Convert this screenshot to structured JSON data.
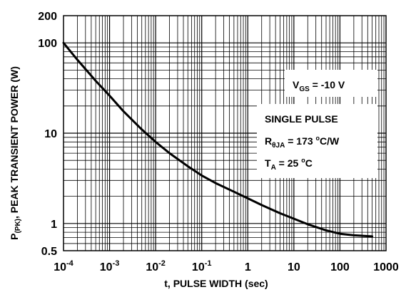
{
  "chart_data": {
    "type": "line",
    "xlabel": "t, PULSE WIDTH (sec)",
    "ylabel": "P(PK), PEAK TRANSIENT POWER (W)",
    "ylabel_parts": {
      "main": "P",
      "sub": "(PK)",
      "rest": ", PEAK TRANSIENT POWER (W)"
    },
    "x_scale": "log",
    "y_scale": "log",
    "xlim": [
      0.0001,
      1000
    ],
    "ylim": [
      0.5,
      200
    ],
    "grid": true,
    "x_ticks": [
      {
        "value": 0.0001,
        "base": "10",
        "exp": "-4"
      },
      {
        "value": 0.001,
        "base": "10",
        "exp": "-3"
      },
      {
        "value": 0.01,
        "base": "10",
        "exp": "-2"
      },
      {
        "value": 0.1,
        "base": "10",
        "exp": "-1"
      },
      {
        "value": 1,
        "base": "1",
        "exp": ""
      },
      {
        "value": 10,
        "base": "10",
        "exp": ""
      },
      {
        "value": 100,
        "base": "100",
        "exp": ""
      },
      {
        "value": 1000,
        "base": "1000",
        "exp": ""
      }
    ],
    "y_ticks": [
      {
        "value": 0.5,
        "label": "0.5"
      },
      {
        "value": 1,
        "label": "1"
      },
      {
        "value": 10,
        "label": "10"
      },
      {
        "value": 100,
        "label": "100"
      },
      {
        "value": 200,
        "label": "200"
      }
    ],
    "series": [
      {
        "x": [
          0.0001,
          0.0002,
          0.0005,
          0.001,
          0.002,
          0.005,
          0.01,
          0.02,
          0.05,
          0.1,
          0.2,
          0.5,
          1,
          2,
          5,
          10,
          20,
          50,
          100,
          200,
          500
        ],
        "y": [
          100,
          65,
          38,
          26,
          17.5,
          11,
          8,
          6,
          4.3,
          3.4,
          2.8,
          2.25,
          1.9,
          1.6,
          1.3,
          1.13,
          0.98,
          0.84,
          0.77,
          0.74,
          0.72
        ]
      }
    ],
    "annotations": {
      "vgs": {
        "main": "V",
        "sub": "GS",
        "rest": " = -10 V"
      },
      "single": "SINGLE PULSE",
      "rtheta": {
        "main": "R",
        "sub": "θJA",
        "rest": " = 173 ",
        "deg": "o",
        "unit": "C/W"
      },
      "ta": {
        "main": "T",
        "sub": "A",
        "rest": " = 25 ",
        "deg": "o",
        "unit": "C"
      }
    }
  }
}
